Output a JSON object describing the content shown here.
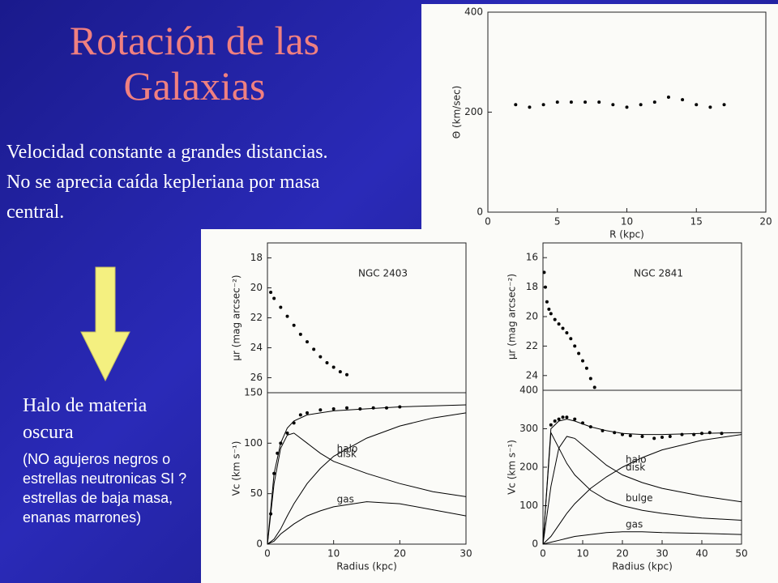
{
  "slide": {
    "title": "Rotación de las Galaxias",
    "text1": "Velocidad constante a grandes distancias. No se aprecia caída kepleriana por masa central.",
    "text2_head": "Halo de materia oscura",
    "text2_body": "(NO agujeros negros o estrellas neutronicas SI ? estrellas de baja masa, enanas marrones)"
  },
  "chart_data": [
    {
      "type": "scatter",
      "x_label": "R (kpc)",
      "y_label": "Θ (km/sec)",
      "xlim": [
        0,
        20
      ],
      "ylim": [
        0,
        400
      ],
      "xticks": [
        0,
        5,
        10,
        15,
        20
      ],
      "yticks": [
        0,
        200,
        400
      ],
      "series": [
        {
          "mode": "points",
          "color": "#000000",
          "x": [
            2,
            3,
            4,
            5,
            6,
            7,
            8,
            9,
            10,
            11,
            12,
            13,
            14,
            15,
            16,
            17
          ],
          "values": [
            215,
            210,
            215,
            220,
            220,
            220,
            220,
            215,
            210,
            215,
            220,
            230,
            225,
            215,
            210,
            215
          ]
        }
      ]
    },
    {
      "type": "scatter",
      "title": "NGC 2403",
      "y_label": "μr (mag arcsec⁻²)",
      "xlim": [
        0,
        30
      ],
      "ylim": [
        27,
        17
      ],
      "yticks": [
        18,
        20,
        22,
        24,
        26
      ],
      "series": [
        {
          "mode": "points",
          "color": "#000000",
          "x": [
            0.5,
            1,
            2,
            3,
            4,
            5,
            6,
            7,
            8,
            9,
            10,
            11,
            12
          ],
          "values": [
            20.3,
            20.7,
            21.3,
            21.9,
            22.5,
            23.1,
            23.6,
            24.1,
            24.6,
            25.0,
            25.3,
            25.6,
            25.8
          ]
        }
      ]
    },
    {
      "type": "line",
      "x_label": "Radius (kpc)",
      "y_label": "Vc (km s⁻¹)",
      "xlim": [
        0,
        30
      ],
      "ylim": [
        0,
        150
      ],
      "xticks": [
        0,
        10,
        20,
        30
      ],
      "yticks": [
        0,
        50,
        100,
        150
      ],
      "series": [
        {
          "mode": "points",
          "color": "#000000",
          "x": [
            0.5,
            1,
            1.5,
            2,
            3,
            4,
            5,
            6,
            8,
            10,
            12,
            14,
            16,
            18,
            20
          ],
          "values": [
            30,
            70,
            90,
            100,
            110,
            120,
            128,
            130,
            133,
            134,
            135,
            134,
            135,
            135,
            136
          ]
        },
        {
          "mode": "line",
          "color": "#000000",
          "x": [
            0,
            1,
            2,
            3,
            4,
            6,
            8,
            10,
            15,
            20,
            25,
            30
          ],
          "values": [
            0,
            70,
            100,
            115,
            122,
            128,
            130,
            132,
            134,
            136,
            137,
            138
          ]
        },
        {
          "name": "halo",
          "mode": "line",
          "color": "#000000",
          "x": [
            0,
            1,
            2,
            3,
            4,
            6,
            8,
            10,
            15,
            20,
            25,
            30
          ],
          "values": [
            0,
            5,
            15,
            28,
            40,
            60,
            75,
            87,
            105,
            117,
            125,
            130
          ]
        },
        {
          "name": "disk",
          "mode": "line",
          "color": "#000000",
          "x": [
            0,
            1,
            2,
            3,
            4,
            6,
            8,
            10,
            15,
            20,
            25,
            30
          ],
          "values": [
            0,
            60,
            95,
            108,
            110,
            100,
            90,
            82,
            70,
            60,
            52,
            47
          ]
        },
        {
          "name": "gas",
          "mode": "line",
          "color": "#000000",
          "x": [
            0,
            1,
            2,
            3,
            4,
            6,
            8,
            10,
            15,
            20,
            25,
            30
          ],
          "values": [
            0,
            3,
            10,
            15,
            20,
            28,
            33,
            37,
            42,
            40,
            34,
            28
          ]
        }
      ]
    },
    {
      "type": "scatter",
      "title": "NGC 2841",
      "y_label": "μr (mag arcsec⁻²)",
      "xlim": [
        0,
        50
      ],
      "ylim": [
        25,
        15
      ],
      "yticks": [
        16,
        18,
        20,
        22,
        24
      ],
      "series": [
        {
          "mode": "points",
          "color": "#000000",
          "x": [
            0.3,
            0.6,
            1,
            1.5,
            2,
            3,
            4,
            5,
            6,
            7,
            8,
            9,
            10,
            11,
            12,
            13
          ],
          "values": [
            17,
            18,
            19,
            19.5,
            19.8,
            20.2,
            20.5,
            20.8,
            21.1,
            21.5,
            22,
            22.5,
            23,
            23.5,
            24.2,
            24.8
          ]
        }
      ]
    },
    {
      "type": "line",
      "x_label": "Radius (kpc)",
      "y_label": "Vc (km s⁻¹)",
      "xlim": [
        0,
        50
      ],
      "ylim": [
        0,
        400
      ],
      "xticks": [
        0,
        10,
        20,
        30,
        40,
        50
      ],
      "yticks": [
        0,
        100,
        200,
        300,
        400
      ],
      "series": [
        {
          "mode": "points",
          "color": "#000000",
          "x": [
            2,
            3,
            4,
            5,
            6,
            8,
            10,
            12,
            15,
            18,
            20,
            22,
            25,
            28,
            30,
            32,
            35,
            38,
            40,
            42,
            45
          ],
          "values": [
            310,
            320,
            325,
            330,
            330,
            325,
            315,
            305,
            295,
            290,
            285,
            282,
            280,
            275,
            278,
            280,
            285,
            285,
            288,
            290,
            288
          ]
        },
        {
          "mode": "line",
          "color": "#000000",
          "x": [
            0,
            2,
            4,
            6,
            8,
            12,
            16,
            20,
            25,
            30,
            40,
            50
          ],
          "values": [
            0,
            300,
            320,
            325,
            320,
            305,
            295,
            288,
            285,
            285,
            288,
            290
          ]
        },
        {
          "name": "halo",
          "mode": "line",
          "color": "#000000",
          "x": [
            0,
            2,
            4,
            6,
            8,
            12,
            16,
            20,
            25,
            30,
            40,
            50
          ],
          "values": [
            0,
            20,
            50,
            80,
            105,
            145,
            175,
            200,
            225,
            245,
            270,
            285
          ]
        },
        {
          "name": "disk",
          "mode": "line",
          "color": "#000000",
          "x": [
            0,
            2,
            4,
            6,
            8,
            12,
            16,
            20,
            25,
            30,
            40,
            50
          ],
          "values": [
            0,
            150,
            250,
            280,
            275,
            240,
            205,
            180,
            160,
            145,
            125,
            110
          ]
        },
        {
          "name": "bulge",
          "mode": "line",
          "color": "#000000",
          "x": [
            0,
            2,
            4,
            6,
            8,
            12,
            16,
            20,
            25,
            30,
            40,
            50
          ],
          "values": [
            0,
            290,
            250,
            210,
            180,
            140,
            115,
            100,
            88,
            80,
            68,
            62
          ]
        },
        {
          "name": "gas",
          "mode": "line",
          "color": "#000000",
          "x": [
            0,
            2,
            4,
            6,
            8,
            12,
            16,
            20,
            25,
            30,
            40,
            50
          ],
          "values": [
            0,
            5,
            10,
            15,
            20,
            25,
            30,
            32,
            32,
            30,
            28,
            25
          ]
        }
      ]
    }
  ]
}
